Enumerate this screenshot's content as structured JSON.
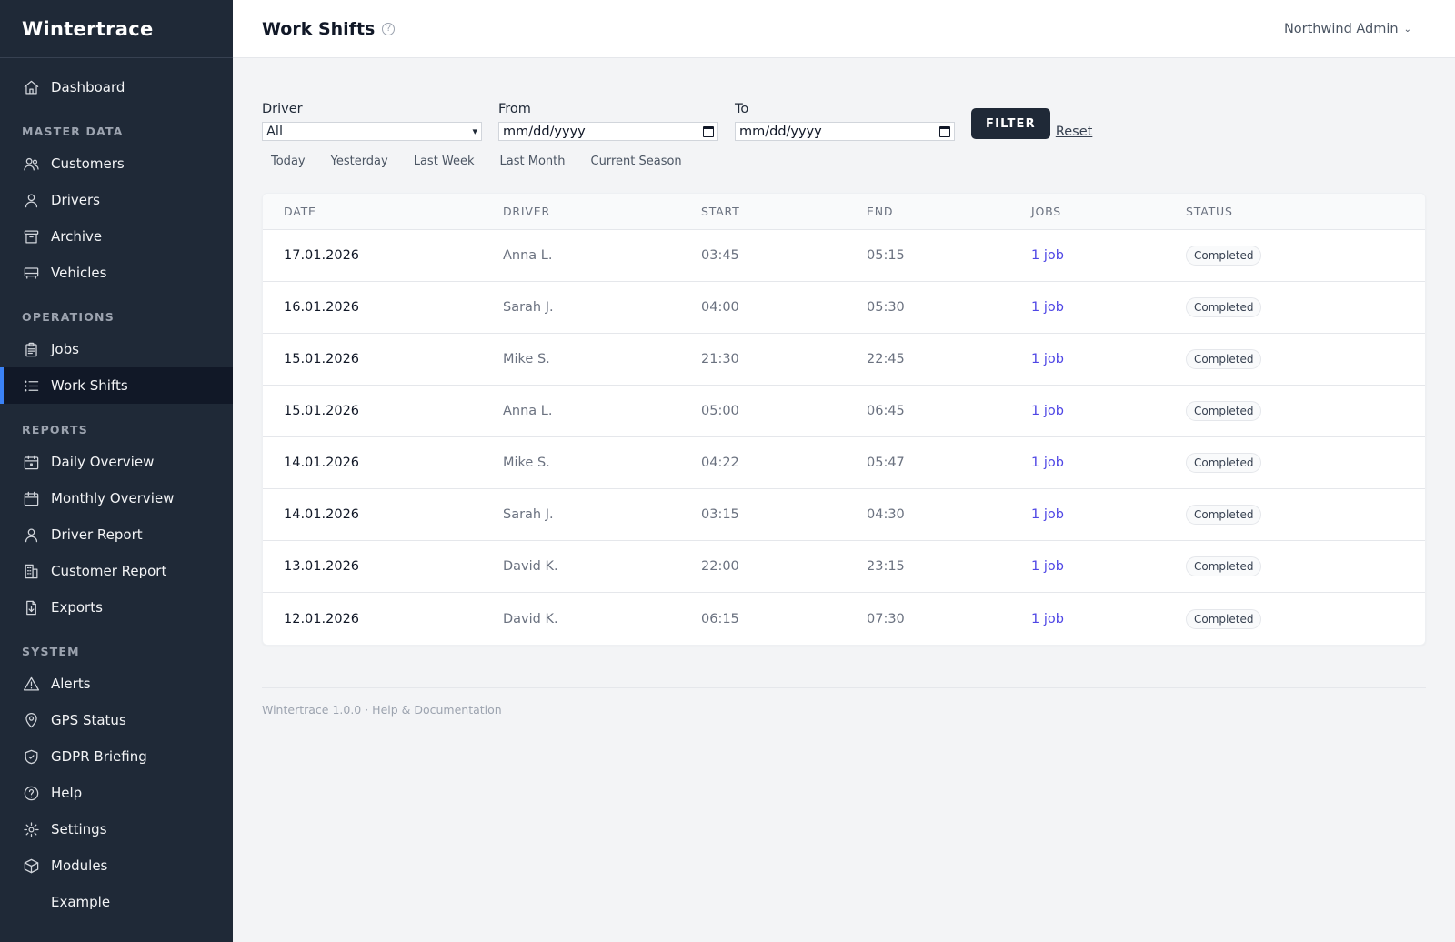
{
  "app": {
    "brand": "Wintertrace"
  },
  "sidebar": {
    "items": [
      {
        "label": "Dashboard",
        "icon": "home-icon"
      },
      {
        "section": "MASTER DATA"
      },
      {
        "label": "Customers",
        "icon": "users-icon"
      },
      {
        "label": "Drivers",
        "icon": "user-icon"
      },
      {
        "label": "Archive",
        "icon": "archive-icon"
      },
      {
        "label": "Vehicles",
        "icon": "truck-icon"
      },
      {
        "section": "OPERATIONS"
      },
      {
        "label": "Jobs",
        "icon": "clipboard-icon"
      },
      {
        "label": "Work Shifts",
        "icon": "list-icon",
        "active": true
      },
      {
        "section": "REPORTS"
      },
      {
        "label": "Daily Overview",
        "icon": "calendar-day-icon"
      },
      {
        "label": "Monthly Overview",
        "icon": "calendar-icon"
      },
      {
        "label": "Driver Report",
        "icon": "user-icon"
      },
      {
        "label": "Customer Report",
        "icon": "building-icon"
      },
      {
        "label": "Exports",
        "icon": "file-download-icon"
      },
      {
        "section": "SYSTEM"
      },
      {
        "label": "Alerts",
        "icon": "warning-icon"
      },
      {
        "label": "GPS Status",
        "icon": "map-pin-icon"
      },
      {
        "label": "GDPR Briefing",
        "icon": "shield-check-icon"
      },
      {
        "label": "Help",
        "icon": "question-circle-icon"
      },
      {
        "label": "Settings",
        "icon": "gear-icon"
      },
      {
        "label": "Modules",
        "icon": "cube-icon"
      },
      {
        "label": "Example",
        "icon": ""
      }
    ]
  },
  "header": {
    "title": "Work Shifts",
    "help_glyph": "?",
    "user": "Northwind Admin"
  },
  "filters": {
    "driver_label": "Driver",
    "driver_value": "All",
    "from_label": "From",
    "from_placeholder": "mm/dd/yyyy",
    "to_label": "To",
    "to_placeholder": "mm/dd/yyyy",
    "filter_button": "FILTER",
    "reset_link": "Reset",
    "quick": [
      "Today",
      "Yesterday",
      "Last Week",
      "Last Month",
      "Current Season"
    ]
  },
  "table": {
    "columns": [
      "DATE",
      "DRIVER",
      "START",
      "END",
      "JOBS",
      "STATUS"
    ],
    "rows": [
      {
        "date": "17.01.2026",
        "driver": "Anna L.",
        "start": "03:45",
        "end": "05:15",
        "jobs": "1 job",
        "status": "Completed"
      },
      {
        "date": "16.01.2026",
        "driver": "Sarah J.",
        "start": "04:00",
        "end": "05:30",
        "jobs": "1 job",
        "status": "Completed"
      },
      {
        "date": "15.01.2026",
        "driver": "Mike S.",
        "start": "21:30",
        "end": "22:45",
        "jobs": "1 job",
        "status": "Completed"
      },
      {
        "date": "15.01.2026",
        "driver": "Anna L.",
        "start": "05:00",
        "end": "06:45",
        "jobs": "1 job",
        "status": "Completed"
      },
      {
        "date": "14.01.2026",
        "driver": "Mike S.",
        "start": "04:22",
        "end": "05:47",
        "jobs": "1 job",
        "status": "Completed"
      },
      {
        "date": "14.01.2026",
        "driver": "Sarah J.",
        "start": "03:15",
        "end": "04:30",
        "jobs": "1 job",
        "status": "Completed"
      },
      {
        "date": "13.01.2026",
        "driver": "David K.",
        "start": "22:00",
        "end": "23:15",
        "jobs": "1 job",
        "status": "Completed"
      },
      {
        "date": "12.01.2026",
        "driver": "David K.",
        "start": "06:15",
        "end": "07:30",
        "jobs": "1 job",
        "status": "Completed"
      }
    ]
  },
  "footer": {
    "text": "Wintertrace 1.0.0 · Help & Documentation"
  },
  "colors": {
    "sidebar_bg": "#1f2937",
    "active_accent": "#3b82f6",
    "link": "#4f46e5",
    "button_bg": "#1f2937"
  }
}
